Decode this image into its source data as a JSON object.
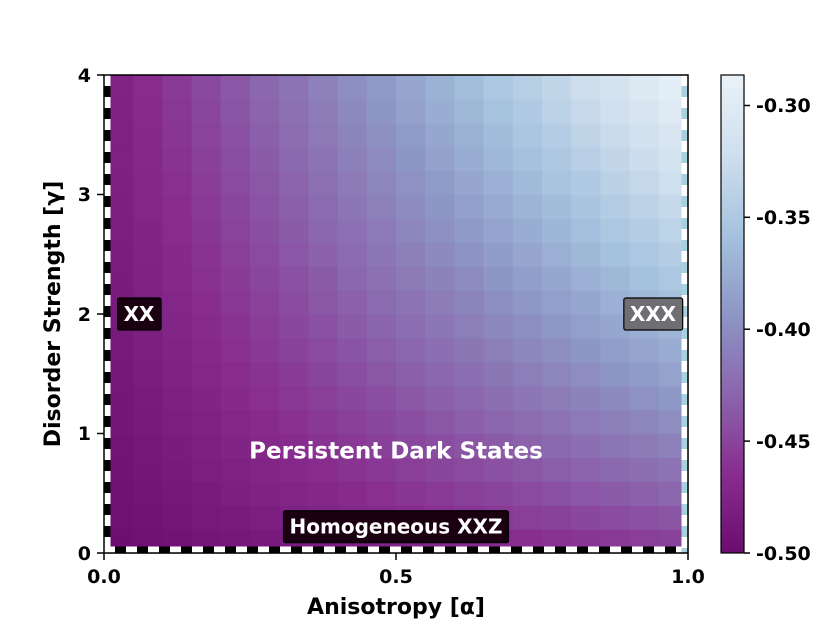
{
  "chart_data": {
    "type": "heatmap",
    "title": "",
    "xlabel": "Anisotropy [α]",
    "ylabel": "Disorder Strength [γ]",
    "xlim": [
      0.0,
      1.0
    ],
    "ylim": [
      0,
      4
    ],
    "x_ticks": [
      "0.0",
      "0.5",
      "1.0"
    ],
    "y_ticks": [
      "0",
      "1",
      "2",
      "3",
      "4"
    ],
    "grid_cols": 20,
    "grid_rows": 20,
    "colorbar": {
      "range": [
        -0.5,
        -0.29
      ],
      "ticks": [
        "-0.30",
        "-0.35",
        "-0.40",
        "-0.45",
        "-0.50"
      ],
      "colormap": "BuPu_r",
      "colors": [
        "#6b0d6f",
        "#882d8f",
        "#8b66ad",
        "#8d96c5",
        "#a5c2de",
        "#cfdfee",
        "#eaf2f8"
      ]
    },
    "value_model": {
      "min_value": -0.5,
      "max_value": -0.29,
      "corner_values": {
        "alpha0_gamma0": -0.5,
        "alpha1_gamma0": -0.46,
        "alpha0_gamma4": -0.48,
        "alpha1_gamma4": -0.29
      }
    },
    "annotations": [
      {
        "text": "XX",
        "alpha": 0.06,
        "gamma": 2.0,
        "box": "#1a0010",
        "text_color": "#ffffff"
      },
      {
        "text": "XXX",
        "alpha": 0.94,
        "gamma": 2.0,
        "box": "#6e6e73",
        "text_color": "#ffffff"
      },
      {
        "text": "Persistent Dark States",
        "alpha": 0.5,
        "gamma": 0.85,
        "box": "none",
        "text_color": "#ffffff"
      },
      {
        "text": "Homogeneous XXZ",
        "alpha": 0.5,
        "gamma": 0.22,
        "box": "#1a0010",
        "text_color": "#ffffff"
      }
    ],
    "dashed_edges": [
      "left",
      "bottom",
      "right"
    ]
  }
}
